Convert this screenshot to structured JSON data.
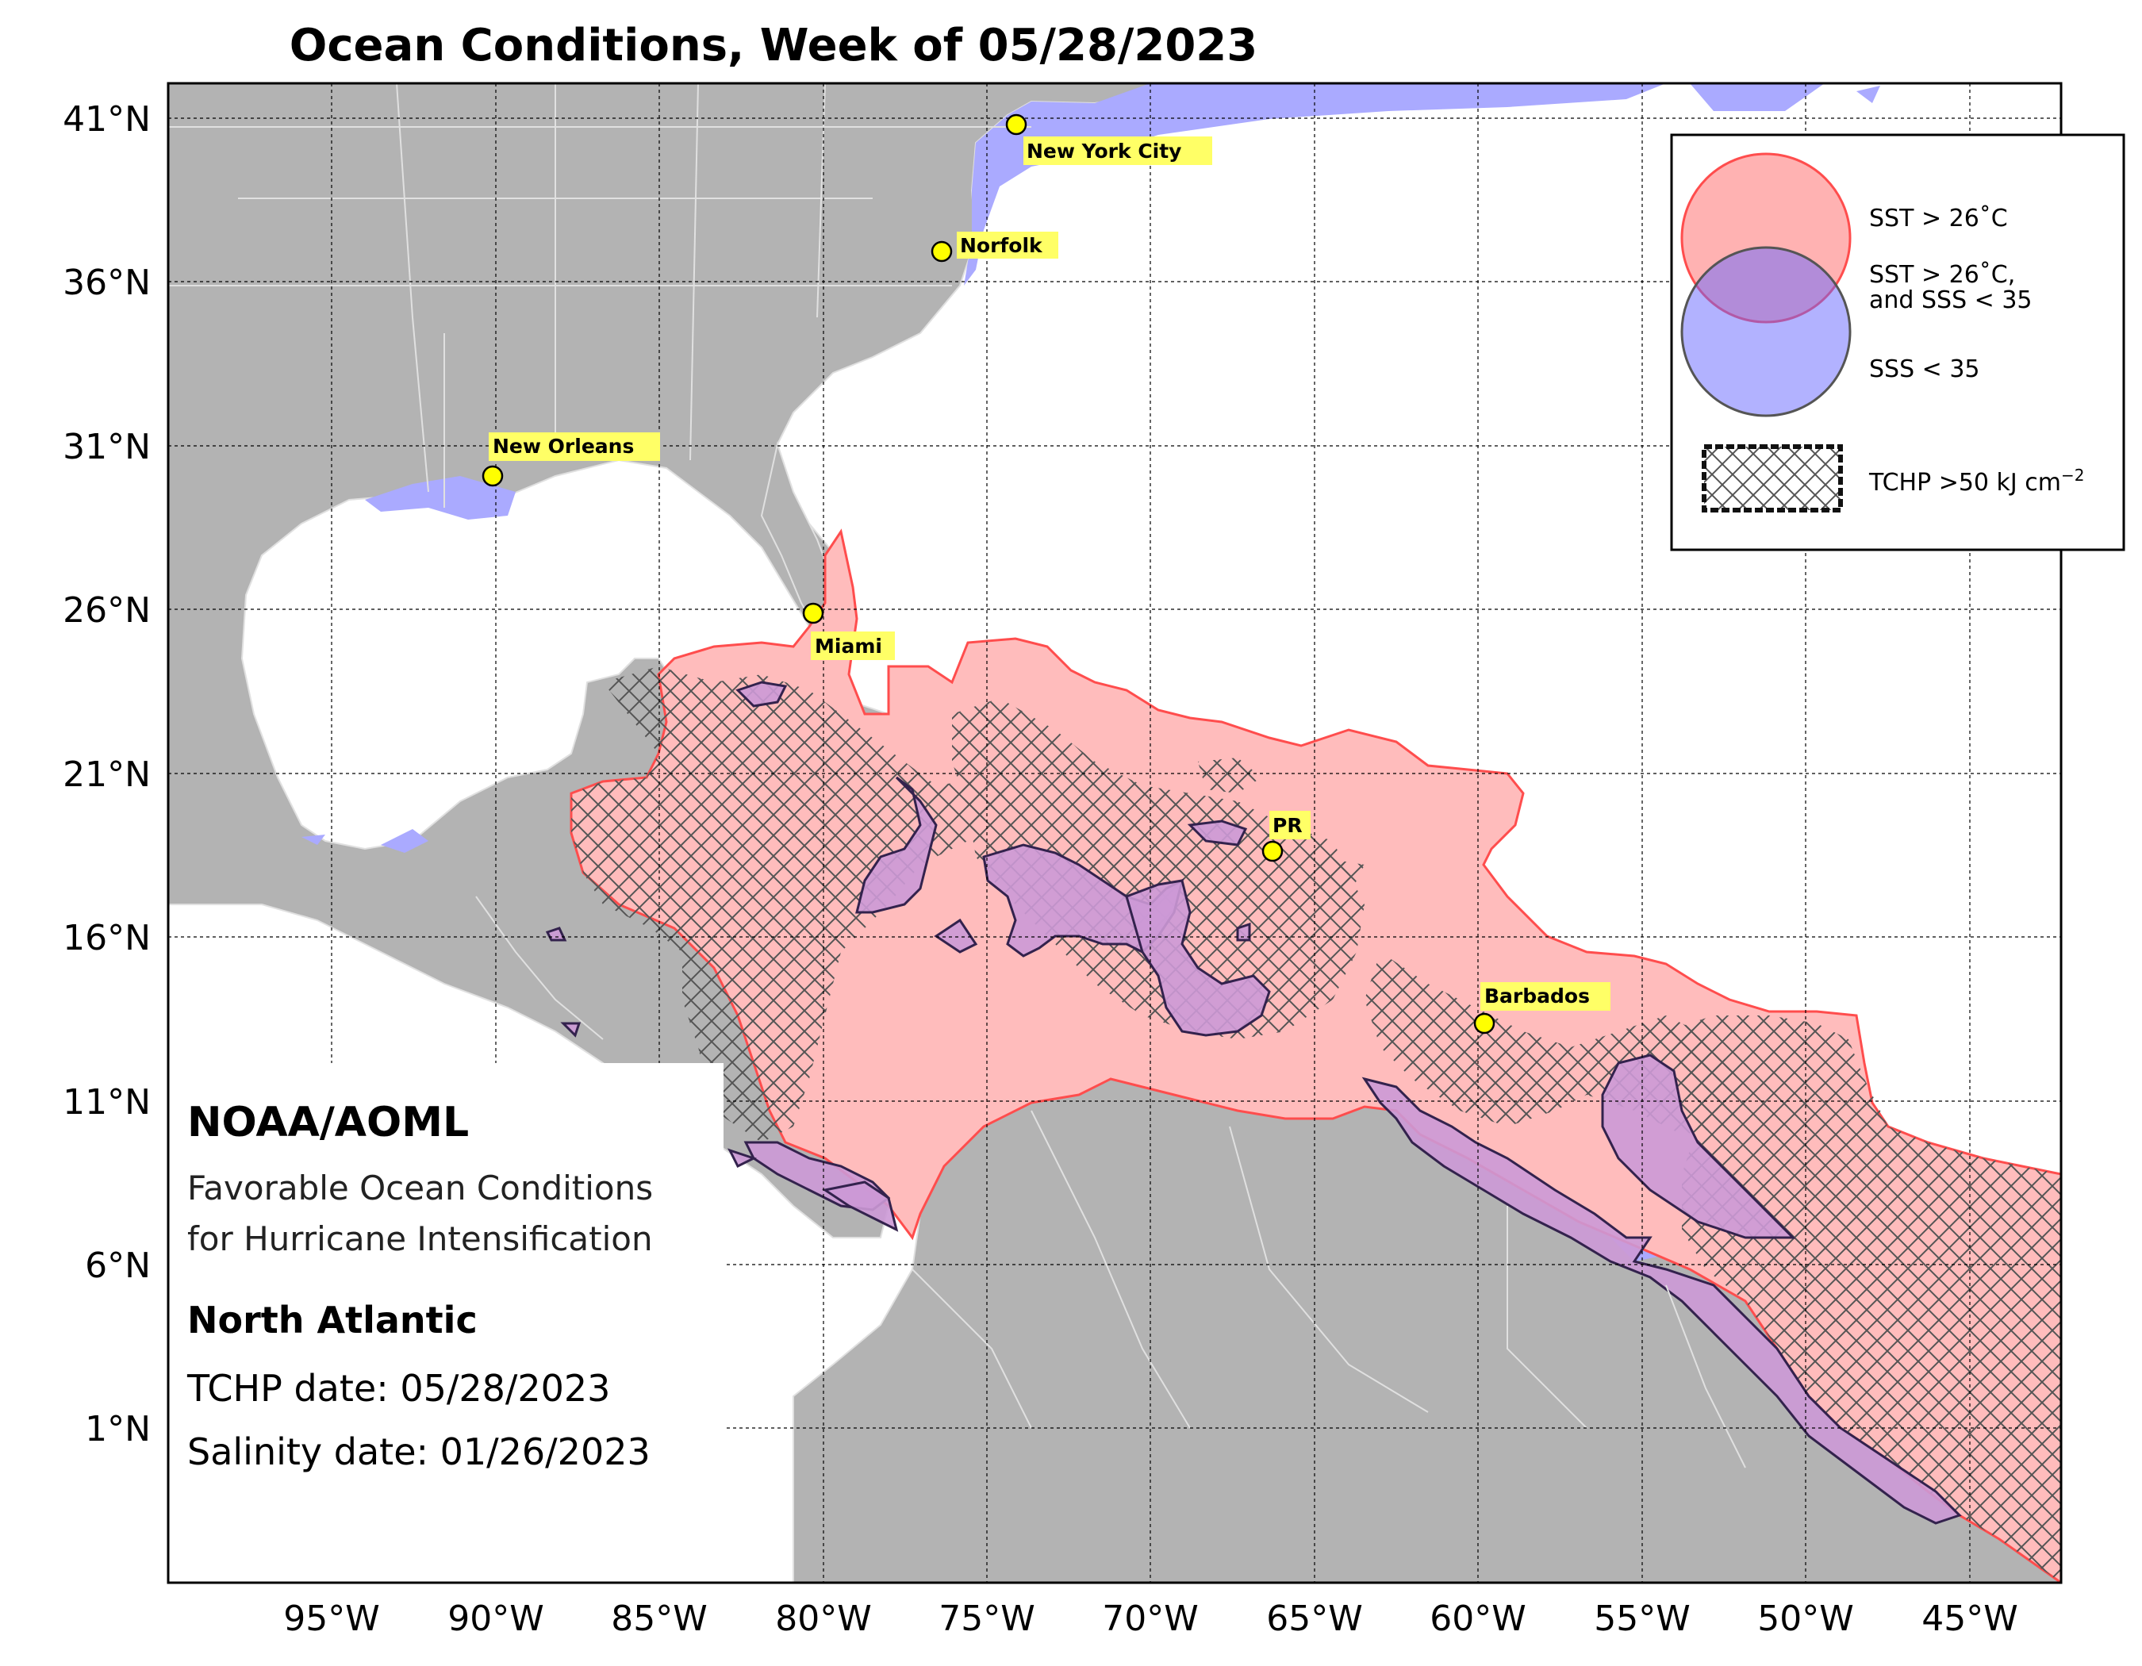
{
  "title": "Ocean Conditions, Week of 05/28/2023",
  "axes": {
    "lat_labels": [
      "41°N",
      "36°N",
      "31°N",
      "26°N",
      "21°N",
      "16°N",
      "11°N",
      "6°N",
      "1°N"
    ],
    "lon_labels": [
      "95°W",
      "90°W",
      "85°W",
      "80°W",
      "75°W",
      "70°W",
      "65°W",
      "60°W",
      "55°W",
      "50°W",
      "45°W"
    ]
  },
  "cities": [
    {
      "name": "New York City",
      "lon": -74.0,
      "lat": 40.7
    },
    {
      "name": "Norfolk",
      "lon": -76.3,
      "lat": 36.9
    },
    {
      "name": "New Orleans",
      "lon": -90.1,
      "lat": 30.0
    },
    {
      "name": "Miami",
      "lon": -80.2,
      "lat": 25.8
    },
    {
      "name": "PR",
      "lon": -66.1,
      "lat": 18.4
    },
    {
      "name": "Barbados",
      "lon": -59.6,
      "lat": 13.1
    }
  ],
  "legend": {
    "sst": "SST > 26˚C",
    "both_line1": "SST > 26˚C,",
    "both_line2": "and SSS < 35",
    "sss": "SSS < 35",
    "tchp": "TCHP >50 kJ cm",
    "tchp_sup": "−2"
  },
  "info": {
    "org": "NOAA/AOML",
    "subtitle1": "Favorable Ocean Conditions",
    "subtitle2": "for Hurricane Intensification",
    "region": "North Atlantic",
    "tchp_date": "TCHP date: 05/28/2023",
    "salinity_date": "Salinity date: 01/26/2023"
  },
  "colors": {
    "land": "#b3b3b3",
    "sst": "#ffbcbc",
    "sst_edge": "#ff4d4d",
    "sss": "#aaaaff",
    "both": "#cc99d6",
    "both_edge": "#33224d",
    "city_marker": "#ffff00",
    "label_bg": "#ffff66"
  }
}
